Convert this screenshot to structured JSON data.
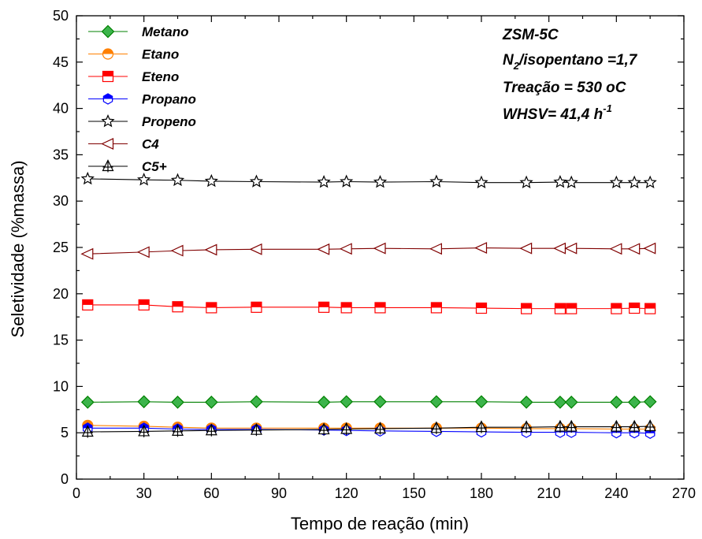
{
  "chart_data": {
    "type": "line",
    "xlabel": "Tempo de reação (min)",
    "ylabel": "Seletividade (%massa)",
    "xlim": [
      0,
      270
    ],
    "ylim": [
      0,
      50
    ],
    "xticks": [
      "0",
      "30",
      "60",
      "90",
      "120",
      "150",
      "180",
      "210",
      "240",
      "270"
    ],
    "yticks": [
      "0",
      "5",
      "10",
      "15",
      "20",
      "25",
      "30",
      "35",
      "40",
      "45",
      "50"
    ],
    "x": [
      5,
      30,
      45,
      60,
      80,
      110,
      120,
      135,
      160,
      180,
      200,
      215,
      220,
      240,
      248,
      255
    ],
    "legend_position": "top-left",
    "grid": false,
    "series": [
      {
        "name": "Metano",
        "color": "#008000",
        "marker": "diamond",
        "values": [
          8.3,
          8.35,
          8.3,
          8.3,
          8.35,
          8.3,
          8.35,
          8.35,
          8.35,
          8.35,
          8.3,
          8.3,
          8.3,
          8.3,
          8.3,
          8.35
        ]
      },
      {
        "name": "Etano",
        "color": "#ff8000",
        "marker": "circle-half",
        "values": [
          5.8,
          5.7,
          5.6,
          5.5,
          5.5,
          5.5,
          5.5,
          5.5,
          5.5,
          5.5,
          5.45,
          5.45,
          5.45,
          5.4,
          5.4,
          5.4
        ]
      },
      {
        "name": "Eteno",
        "color": "#ff0000",
        "marker": "square-half",
        "values": [
          18.8,
          18.8,
          18.6,
          18.5,
          18.55,
          18.55,
          18.5,
          18.5,
          18.5,
          18.45,
          18.4,
          18.4,
          18.4,
          18.4,
          18.45,
          18.4
        ]
      },
      {
        "name": "Propano",
        "color": "#0000ff",
        "marker": "hexagon-half",
        "values": [
          5.5,
          5.5,
          5.4,
          5.35,
          5.35,
          5.3,
          5.25,
          5.2,
          5.15,
          5.1,
          5.05,
          5.05,
          5.05,
          5.0,
          5.0,
          4.95
        ]
      },
      {
        "name": "Propeno",
        "color": "#000000",
        "marker": "star",
        "values": [
          32.4,
          32.3,
          32.25,
          32.15,
          32.1,
          32.05,
          32.1,
          32.05,
          32.1,
          32.0,
          32.0,
          32.05,
          32.0,
          32.0,
          32.0,
          32.0
        ]
      },
      {
        "name": "C4",
        "color": "#800000",
        "marker": "triangle-left",
        "values": [
          24.3,
          24.5,
          24.65,
          24.75,
          24.8,
          24.8,
          24.85,
          24.9,
          24.85,
          24.95,
          24.9,
          24.9,
          24.9,
          24.85,
          24.85,
          24.9
        ]
      },
      {
        "name": "C5+",
        "color": "#000000",
        "marker": "triangle-up-cross",
        "values": [
          5.1,
          5.15,
          5.2,
          5.25,
          5.3,
          5.35,
          5.4,
          5.45,
          5.5,
          5.6,
          5.6,
          5.65,
          5.65,
          5.65,
          5.65,
          5.7
        ]
      }
    ],
    "annotations": {
      "line1": "ZSM-5C",
      "line2_main": "N",
      "line2_sub": "2",
      "line2_rest": "/isopentano =1,7",
      "line3": "Treação = 530 oC",
      "line4_main": "WHSV= 41,4 h",
      "line4_sup": "-1"
    }
  }
}
